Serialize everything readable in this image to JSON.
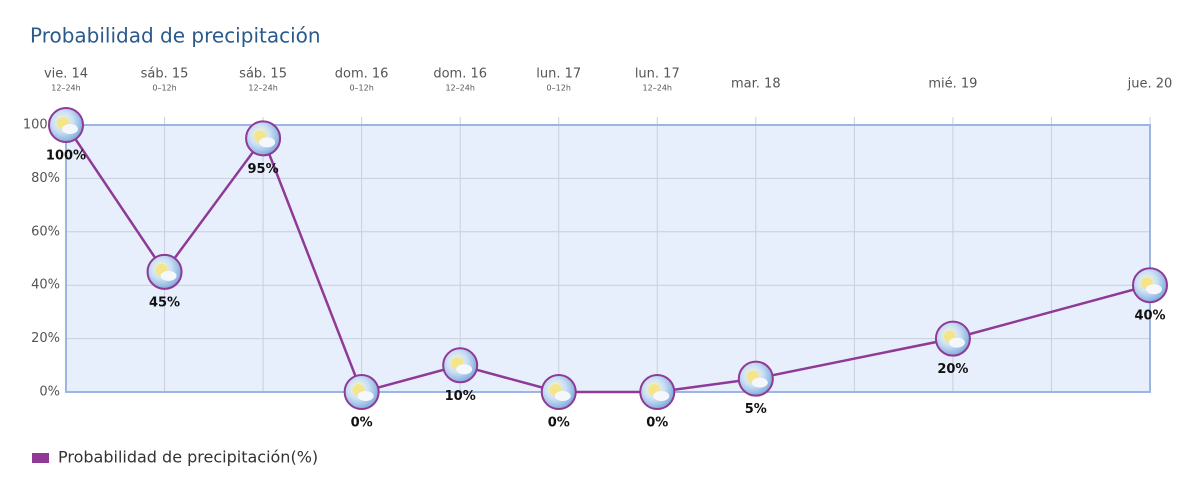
{
  "chart_data": {
    "type": "line",
    "title": "Probabilidad de precipitación",
    "categories": [
      "vie. 14",
      "sáb. 15",
      "sáb. 15",
      "dom. 16",
      "dom. 16",
      "lun. 17",
      "lun. 17",
      "mar. 18",
      "mié. 19",
      "jue. 20"
    ],
    "sublabels": [
      "12–24h",
      "0–12h",
      "12–24h",
      "0–12h",
      "12–24h",
      "0–12h",
      "12–24h",
      null,
      null,
      null
    ],
    "series": [
      {
        "name": "Probabilidad de precipitación(%)",
        "color": "#8e3a96",
        "values": [
          100,
          45,
          95,
          0,
          10,
          0,
          0,
          5,
          20,
          40
        ],
        "value_labels": [
          "100%",
          "45%",
          "95%",
          "0%",
          "10%",
          "0%",
          "0%",
          "5%",
          "20%",
          "40%"
        ]
      }
    ],
    "ylim": [
      0,
      100
    ],
    "yticks": [
      {
        "value": 0,
        "label": "0%"
      },
      {
        "value": 20,
        "label": "20%"
      },
      {
        "value": 40,
        "label": "40%"
      },
      {
        "value": 60,
        "label": "60%"
      },
      {
        "value": 80,
        "label": "80%"
      },
      {
        "value": 100,
        "label": "100%"
      }
    ],
    "grid": true,
    "legend": "bottom-left"
  }
}
